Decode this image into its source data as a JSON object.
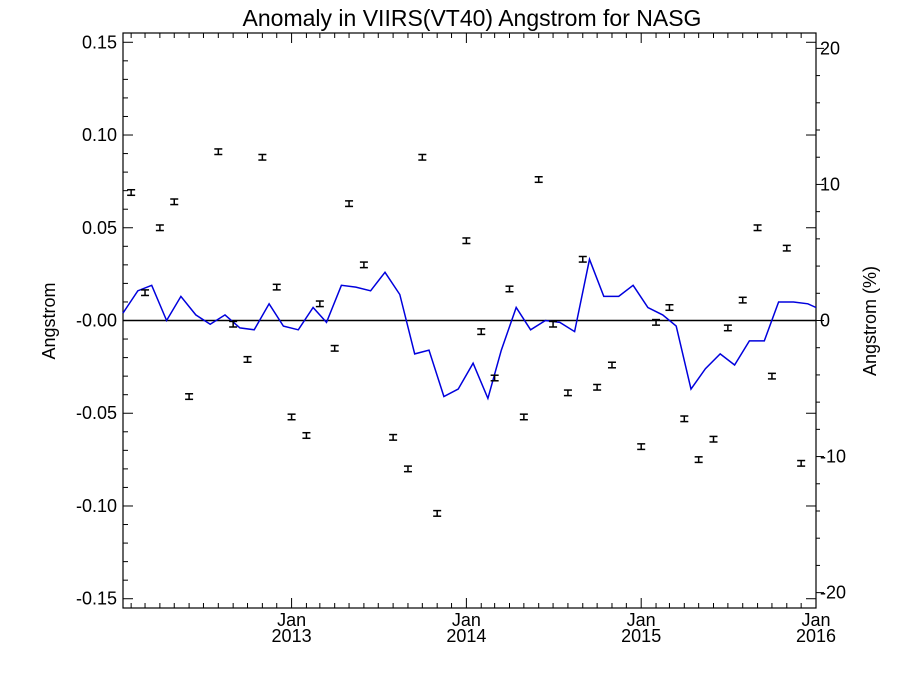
{
  "chart_data": {
    "type": "line",
    "title": "Anomaly in VIIRS(VT40) Angstrom for NASG",
    "ylabel": "Angstrom",
    "y2label": "Angstrom (%)",
    "xlabel": "",
    "ylim": [
      -0.155,
      0.155
    ],
    "y2lim": [
      -21.13,
      21.13
    ],
    "xlim": [
      "2012-01-15",
      "2016-01-01"
    ],
    "yticks": [
      {
        "value": 0.15,
        "label": "0.15"
      },
      {
        "value": 0.1,
        "label": "0.10"
      },
      {
        "value": 0.05,
        "label": "0.05"
      },
      {
        "value": 0.0,
        "label": "-0.00"
      },
      {
        "value": -0.05,
        "label": "-0.05"
      },
      {
        "value": -0.1,
        "label": "-0.10"
      },
      {
        "value": -0.15,
        "label": "-0.15"
      }
    ],
    "y2ticks": [
      {
        "value": 20,
        "label": "20"
      },
      {
        "value": 10,
        "label": "10"
      },
      {
        "value": 0,
        "label": "0"
      },
      {
        "value": -10,
        "label": "-10"
      },
      {
        "value": -20,
        "label": "-20"
      }
    ],
    "xticks": [
      {
        "date": "2013-01-01",
        "month": "Jan",
        "year": "2013"
      },
      {
        "date": "2014-01-01",
        "month": "Jan",
        "year": "2014"
      },
      {
        "date": "2015-01-01",
        "month": "Jan",
        "year": "2015"
      },
      {
        "date": "2016-01-01",
        "month": "Jan",
        "year": "2016"
      }
    ],
    "grid": false,
    "zero_line": true,
    "series": [
      {
        "kind": "line",
        "axis": "left",
        "color": "#0000dd",
        "points": [
          [
            "2012-01-15",
            0.004
          ],
          [
            "2012-02-15",
            0.016
          ],
          [
            "2012-03-15",
            0.019
          ],
          [
            "2012-04-15",
            0.0
          ],
          [
            "2012-05-15",
            0.013
          ],
          [
            "2012-06-15",
            0.003
          ],
          [
            "2012-07-15",
            -0.002
          ],
          [
            "2012-08-15",
            0.003
          ],
          [
            "2012-09-15",
            -0.004
          ],
          [
            "2012-10-15",
            -0.005
          ],
          [
            "2012-11-15",
            0.009
          ],
          [
            "2012-12-15",
            -0.003
          ],
          [
            "2013-01-15",
            -0.005
          ],
          [
            "2013-02-15",
            0.007
          ],
          [
            "2013-03-15",
            -0.001
          ],
          [
            "2013-04-15",
            0.019
          ],
          [
            "2013-05-15",
            0.018
          ],
          [
            "2013-06-15",
            0.016
          ],
          [
            "2013-07-15",
            0.026
          ],
          [
            "2013-08-15",
            0.014
          ],
          [
            "2013-09-15",
            -0.018
          ],
          [
            "2013-10-15",
            -0.016
          ],
          [
            "2013-11-15",
            -0.041
          ],
          [
            "2013-12-15",
            -0.037
          ],
          [
            "2014-01-15",
            -0.023
          ],
          [
            "2014-02-15",
            -0.042
          ],
          [
            "2014-03-15",
            -0.016
          ],
          [
            "2014-04-15",
            0.007
          ],
          [
            "2014-05-15",
            -0.005
          ],
          [
            "2014-06-15",
            0.0
          ],
          [
            "2014-07-15",
            -0.001
          ],
          [
            "2014-08-15",
            -0.006
          ],
          [
            "2014-09-15",
            0.033
          ],
          [
            "2014-10-15",
            0.013
          ],
          [
            "2014-11-15",
            0.013
          ],
          [
            "2014-12-15",
            0.019
          ],
          [
            "2015-01-15",
            0.007
          ],
          [
            "2015-02-15",
            0.003
          ],
          [
            "2015-03-15",
            -0.003
          ],
          [
            "2015-04-15",
            -0.037
          ],
          [
            "2015-05-15",
            -0.026
          ],
          [
            "2015-06-15",
            -0.018
          ],
          [
            "2015-07-15",
            -0.024
          ],
          [
            "2015-08-15",
            -0.011
          ],
          [
            "2015-09-15",
            -0.011
          ],
          [
            "2015-10-15",
            0.01
          ],
          [
            "2015-11-15",
            0.01
          ],
          [
            "2015-12-15",
            0.009
          ],
          [
            "2016-01-01",
            0.007
          ]
        ]
      },
      {
        "kind": "errorbar",
        "axis": "left",
        "color": "#000000",
        "error": 0.0015,
        "points": [
          [
            "2012-02-01",
            0.069
          ],
          [
            "2012-03-01",
            0.015
          ],
          [
            "2012-04-01",
            0.05
          ],
          [
            "2012-05-01",
            0.064
          ],
          [
            "2012-06-01",
            -0.041
          ],
          [
            "2012-08-01",
            0.091
          ],
          [
            "2012-09-01",
            -0.002
          ],
          [
            "2012-10-01",
            -0.021
          ],
          [
            "2012-11-01",
            0.088
          ],
          [
            "2012-12-01",
            0.018
          ],
          [
            "2013-01-01",
            -0.052
          ],
          [
            "2013-02-01",
            -0.062
          ],
          [
            "2013-03-01",
            0.009
          ],
          [
            "2013-04-01",
            -0.015
          ],
          [
            "2013-05-01",
            0.063
          ],
          [
            "2013-06-01",
            0.03
          ],
          [
            "2013-08-01",
            -0.063
          ],
          [
            "2013-09-01",
            -0.08
          ],
          [
            "2013-10-01",
            0.088
          ],
          [
            "2013-11-01",
            -0.104
          ],
          [
            "2014-01-01",
            0.043
          ],
          [
            "2014-02-01",
            -0.006
          ],
          [
            "2014-03-01",
            -0.031
          ],
          [
            "2014-04-01",
            0.017
          ],
          [
            "2014-05-01",
            -0.052
          ],
          [
            "2014-06-01",
            0.076
          ],
          [
            "2014-07-01",
            -0.002
          ],
          [
            "2014-08-01",
            -0.039
          ],
          [
            "2014-09-01",
            0.033
          ],
          [
            "2014-10-01",
            -0.036
          ],
          [
            "2014-11-01",
            -0.024
          ],
          [
            "2015-01-01",
            -0.068
          ],
          [
            "2015-02-01",
            -0.001
          ],
          [
            "2015-03-01",
            0.007
          ],
          [
            "2015-04-01",
            -0.053
          ],
          [
            "2015-05-01",
            -0.075
          ],
          [
            "2015-06-01",
            -0.064
          ],
          [
            "2015-07-01",
            -0.004
          ],
          [
            "2015-08-01",
            0.011
          ],
          [
            "2015-09-01",
            0.05
          ],
          [
            "2015-10-01",
            -0.03
          ],
          [
            "2015-11-01",
            0.039
          ],
          [
            "2015-12-01",
            -0.077
          ]
        ]
      }
    ]
  }
}
